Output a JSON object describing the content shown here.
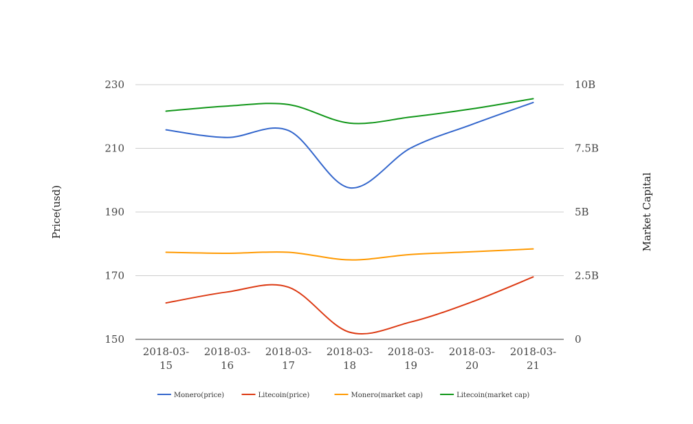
{
  "chart_data": {
    "type": "line",
    "categories": [
      "2018-03-15",
      "2018-03-16",
      "2018-03-17",
      "2018-03-18",
      "2018-03-19",
      "2018-03-20",
      "2018-03-21"
    ],
    "x_tick_lines": [
      [
        "2018-03-",
        "15"
      ],
      [
        "2018-03-",
        "16"
      ],
      [
        "2018-03-",
        "17"
      ],
      [
        "2018-03-",
        "18"
      ],
      [
        "2018-03-",
        "19"
      ],
      [
        "2018-03-",
        "20"
      ],
      [
        "2018-03-",
        "21"
      ]
    ],
    "ylabel": "Price(usd)",
    "y2label": "Market Capital",
    "ylim": [
      150,
      230
    ],
    "yticks": [
      150,
      170,
      190,
      210,
      230
    ],
    "y2lim": [
      0,
      10000000000
    ],
    "y2ticks": [
      0,
      2500000000,
      5000000000,
      7500000000,
      10000000000
    ],
    "y2tick_labels": [
      "0",
      "2.5B",
      "5B",
      "7.5B",
      "10B"
    ],
    "grid": true,
    "legend_position": "bottom",
    "series": [
      {
        "name": "Monero(price)",
        "axis": "left",
        "color": "#3366cc",
        "values": [
          215.8,
          213.4,
          215.6,
          197.6,
          210.1,
          217.5,
          224.4
        ]
      },
      {
        "name": "Litecoin(price)",
        "axis": "right",
        "color": "#dc3912",
        "values": [
          1430000000,
          1860000000,
          2050000000,
          280000000,
          680000000,
          1470000000,
          2450000000
        ]
      },
      {
        "name": "Monero(market cap)",
        "axis": "right",
        "color": "#ff9900",
        "values": [
          3420000000,
          3380000000,
          3420000000,
          3120000000,
          3330000000,
          3440000000,
          3550000000
        ]
      },
      {
        "name": "Litecoin(market cap)",
        "axis": "right",
        "color": "#109618",
        "values": [
          8960000000,
          9160000000,
          9220000000,
          8490000000,
          8730000000,
          9050000000,
          9450000000
        ]
      }
    ]
  }
}
